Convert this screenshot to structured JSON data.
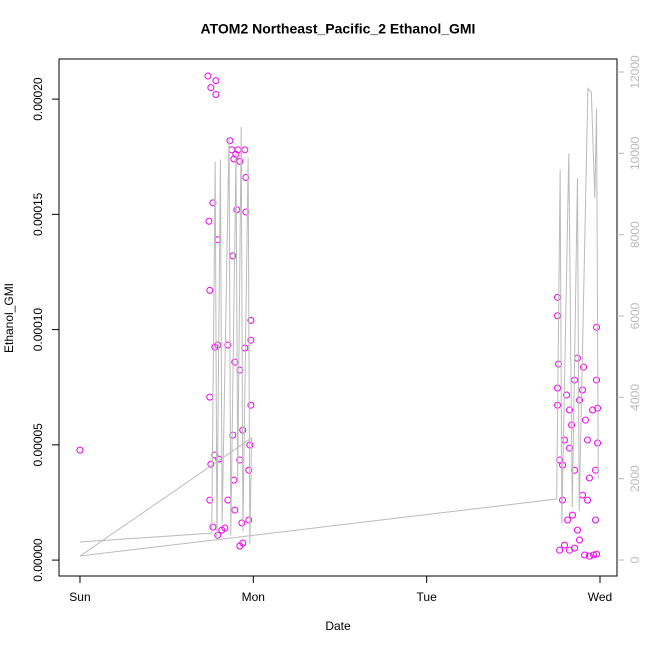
{
  "chart_data": {
    "type": "scatter",
    "title": "ATOM2 Northeast_Pacific_2 Ethanol_GMI",
    "x_label": "Date",
    "y_label": "Ethanol_GMI",
    "xlim": [
      -0.121,
      3.098
    ],
    "xticks": [
      {
        "value": 0,
        "label": "Sun"
      },
      {
        "value": 1,
        "label": "Mon"
      },
      {
        "value": 2,
        "label": "Tue"
      },
      {
        "value": 3,
        "label": "Wed"
      }
    ],
    "ylim": [
      -6.9e-06,
      0.0002174
    ],
    "yticks": [
      {
        "value": 0,
        "label": "0.00000"
      },
      {
        "value": 5e-05,
        "label": "0.00005"
      },
      {
        "value": 0.0001,
        "label": "0.00010"
      },
      {
        "value": 0.00015,
        "label": "0.00015"
      },
      {
        "value": 0.0002,
        "label": "0.00020"
      }
    ],
    "y2lim": [
      -393,
      12320
    ],
    "y2ticks": [
      0,
      2000,
      4000,
      6000,
      8000,
      10000,
      12000
    ],
    "series": [
      {
        "color": "#ee00ee",
        "x": [
          0,
          0.738,
          0.755,
          0.784,
          0.784,
          0.767,
          0.744,
          0.749,
          0.795,
          0.778,
          0.795,
          0.749,
          0.755,
          0.778,
          0.801,
          0.749,
          0.767,
          0.795,
          0.818,
          0.865,
          0.876,
          0.888,
          0.899,
          0.911,
          0.922,
          0.951,
          0.957,
          0.957,
          0.905,
          0.882,
          0.853,
          0.893,
          0.922,
          0.951,
          0.986,
          0.986,
          0.986,
          0.98,
          0.974,
          0.888,
          0.922,
          0.939,
          0.882,
          0.853,
          0.893,
          0.939,
          0.934,
          0.974,
          0.836,
          0.922,
          2.755,
          2.755,
          2.761,
          2.755,
          2.755,
          2.767,
          2.784,
          2.795,
          2.807,
          2.824,
          2.836,
          2.853,
          2.87,
          2.882,
          2.899,
          2.905,
          2.916,
          2.928,
          2.939,
          2.957,
          2.98,
          2.98,
          2.986,
          2.986,
          2.974,
          2.974,
          2.767,
          2.795,
          2.824,
          2.853,
          2.882,
          2.911,
          2.939,
          2.963,
          2.98,
          2.784,
          2.813,
          2.841,
          2.87,
          2.899,
          2.928,
          2.853,
          2.824
        ],
        "values": [
          4.77e-05,
          0.00021,
          0.000205,
          0.000208,
          0.000202,
          0.000155,
          0.000147,
          0.000117,
          0.000139,
          9.24e-05,
          9.33e-05,
          7.07e-05,
          4.16e-05,
          4.56e-05,
          4.38e-05,
          2.6e-05,
          1.43e-05,
          1.08e-05,
          1.3e-05,
          0.000182,
          0.000178,
          0.000174,
          0.000176,
          0.000178,
          0.000173,
          0.000178,
          0.000166,
          0.000151,
          0.000152,
          0.000132,
          9.33e-05,
          8.59e-05,
          8.24e-05,
          9.2e-05,
          9.54e-05,
          0.000104,
          6.72e-05,
          4.99e-05,
          3.9e-05,
          3.47e-05,
          4.34e-05,
          5.64e-05,
          5.42e-05,
          2.6e-05,
          2.17e-05,
          7.4e-06,
          1.61e-05,
          1.74e-05,
          1.39e-05,
          6.1e-06,
          0.000114,
          0.000106,
          8.5e-05,
          7.46e-05,
          6.72e-05,
          4.34e-05,
          4.12e-05,
          5.21e-05,
          7.16e-05,
          6.51e-05,
          5.86e-05,
          7.81e-05,
          8.76e-05,
          6.94e-05,
          7.38e-05,
          8.37e-05,
          6.07e-05,
          5.21e-05,
          3.56e-05,
          6.51e-05,
          0.000101,
          7.81e-05,
          6.59e-05,
          5.08e-05,
          3.9e-05,
          1.74e-05,
          4.3e-06,
          6.5e-06,
          4.3e-06,
          5.2e-06,
          8.7e-06,
          2.2e-06,
          1.7e-06,
          2.2e-06,
          2.6e-06,
          2.6e-05,
          1.74e-05,
          1.95e-05,
          1.3e-05,
          2.82e-05,
          2.6e-05,
          3.9e-05,
          4.86e-05
        ]
      },
      {
        "color": "#bbbbbb",
        "axis": "y2",
        "x": [
          0,
          0.76,
          0.78,
          0.79,
          0.81,
          0.82,
          0.86,
          0.87,
          0.9,
          0.91,
          0.93,
          0.94,
          0.97,
          0.98,
          0.99,
          0,
          2.75,
          2.77,
          2.78,
          2.82,
          2.84,
          2.87,
          2.88,
          2.93,
          2.95,
          2.97,
          2.98,
          2.99
        ],
        "values": [
          443,
          660,
          9800,
          500,
          9850,
          900,
          10400,
          600,
          10000,
          2000,
          10650,
          700,
          9900,
          400,
          3000,
          98,
          1500,
          9600,
          900,
          10000,
          1300,
          9400,
          1200,
          11600,
          11500,
          8900,
          11100,
          2000
        ]
      }
    ]
  }
}
